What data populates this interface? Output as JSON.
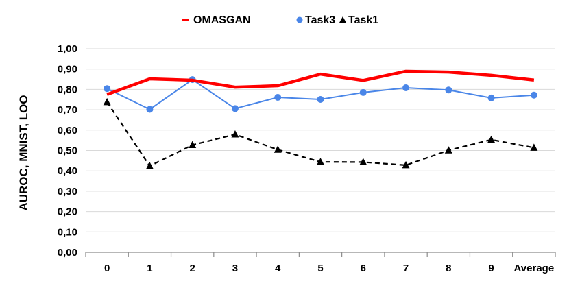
{
  "chart_data": {
    "type": "line",
    "title": "",
    "xlabel": "",
    "ylabel": "AUROC, MNIST, LOO",
    "ylim": [
      0,
      1
    ],
    "y_ticks": [
      "0,00",
      "0,10",
      "0,20",
      "0,30",
      "0,40",
      "0,50",
      "0,60",
      "0,70",
      "0,80",
      "0,90",
      "1,00"
    ],
    "categories": [
      "0",
      "1",
      "2",
      "3",
      "4",
      "5",
      "6",
      "7",
      "8",
      "9",
      "Average"
    ],
    "grid": true,
    "legend_position": "top",
    "series": [
      {
        "name": "OMASGAN",
        "color": "#ff0000",
        "style": "solid-thick",
        "marker": "none",
        "values": [
          0.775,
          0.852,
          0.845,
          0.811,
          0.818,
          0.875,
          0.844,
          0.889,
          0.885,
          0.869,
          0.846
        ]
      },
      {
        "name": "Task3",
        "color": "#4a86e8",
        "style": "solid",
        "marker": "circle",
        "values": [
          0.804,
          0.702,
          0.848,
          0.706,
          0.761,
          0.751,
          0.785,
          0.808,
          0.797,
          0.758,
          0.772
        ]
      },
      {
        "name": "Task1",
        "color": "#000000",
        "style": "dashed",
        "marker": "triangle",
        "values": [
          0.738,
          0.424,
          0.527,
          0.579,
          0.504,
          0.444,
          0.443,
          0.428,
          0.501,
          0.553,
          0.514
        ]
      }
    ]
  }
}
